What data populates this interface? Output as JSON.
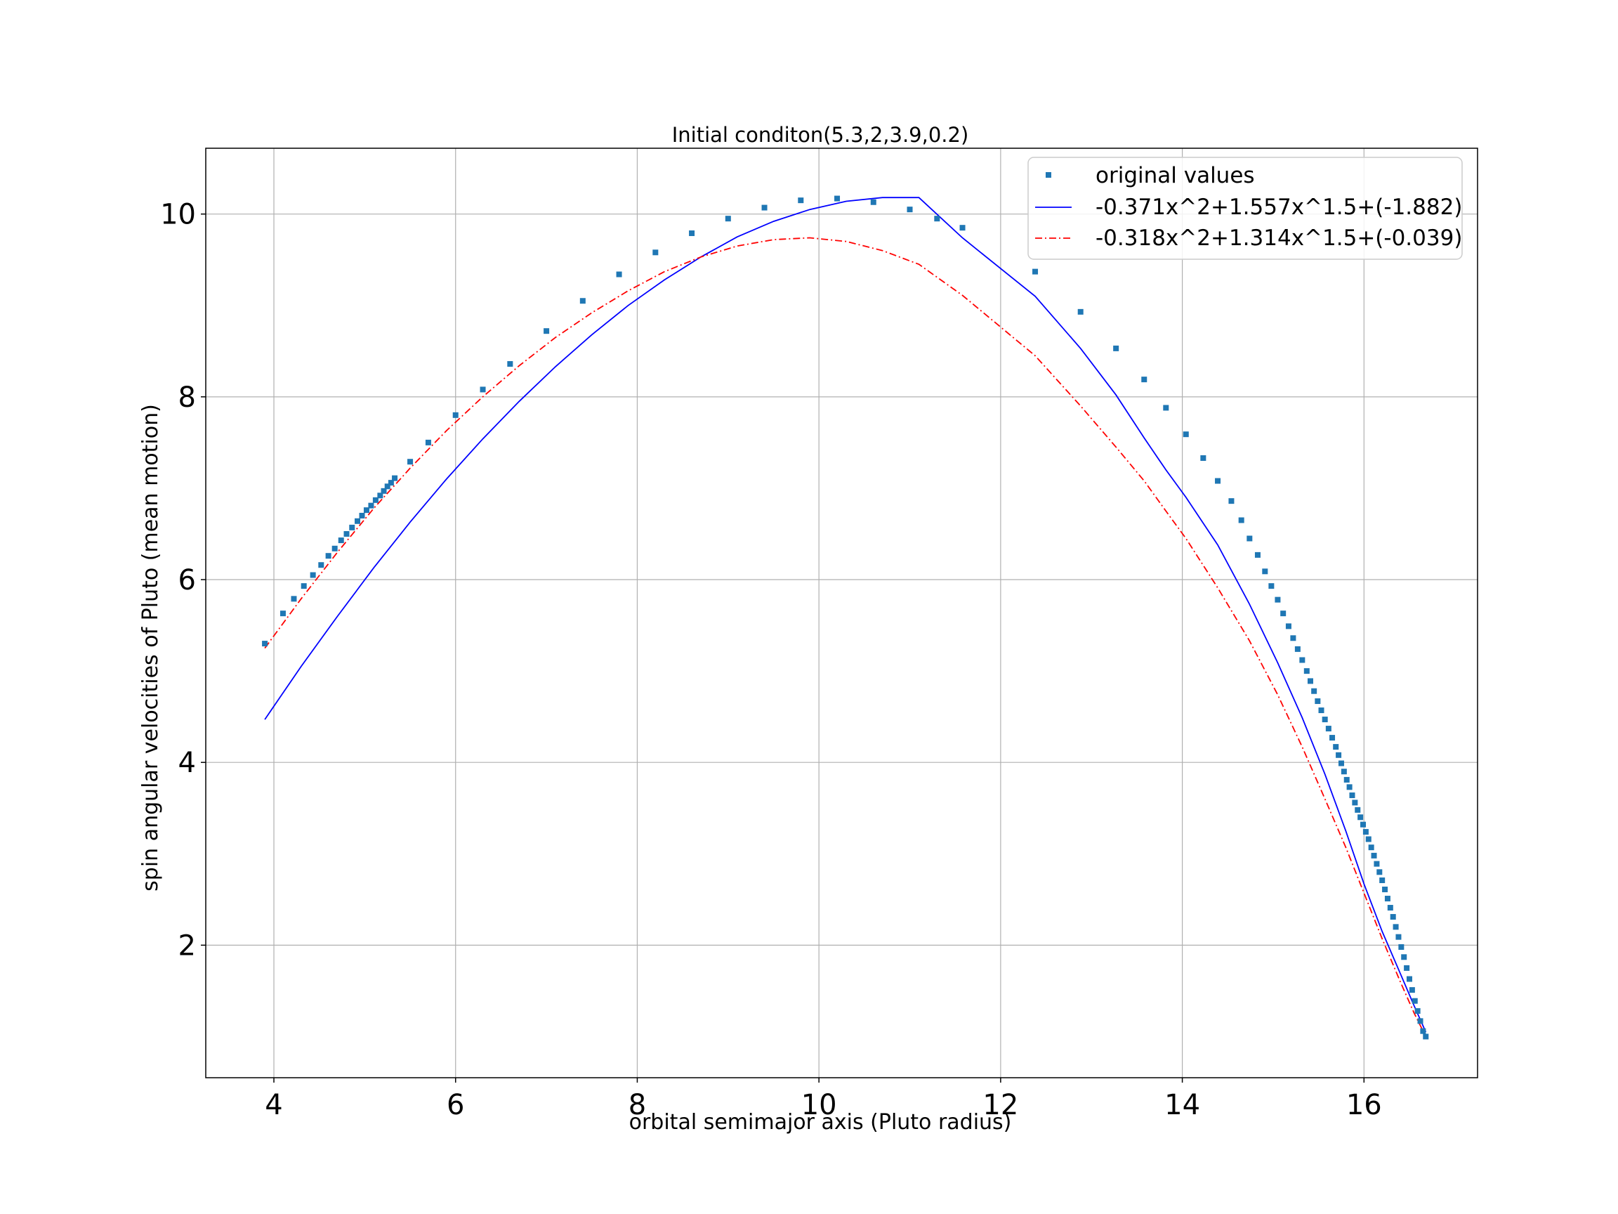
{
  "chart_data": {
    "type": "scatter",
    "title": "Initial conditon(5.3,2,3.9,0.2)",
    "xlabel": "orbital semimajor axis (Pluto radius)",
    "ylabel": "spin angular velocities of Pluto (mean motion)",
    "xlim": [
      3.25,
      17.25
    ],
    "ylim": [
      0.55,
      10.72
    ],
    "xticks": [
      4,
      6,
      8,
      10,
      12,
      14,
      16
    ],
    "yticks": [
      2,
      4,
      6,
      8,
      10
    ],
    "grid": true,
    "legend_position": "upper right",
    "series": [
      {
        "name": "original values",
        "kind": "scatter",
        "marker": "square",
        "color": "#1f77b4",
        "points": [
          [
            3.9,
            5.3
          ],
          [
            4.1,
            5.63
          ],
          [
            4.22,
            5.79
          ],
          [
            4.33,
            5.93
          ],
          [
            4.43,
            6.05
          ],
          [
            4.52,
            6.16
          ],
          [
            4.6,
            6.26
          ],
          [
            4.67,
            6.34
          ],
          [
            4.74,
            6.43
          ],
          [
            4.8,
            6.5
          ],
          [
            4.86,
            6.57
          ],
          [
            4.92,
            6.64
          ],
          [
            4.97,
            6.7
          ],
          [
            5.02,
            6.76
          ],
          [
            5.07,
            6.81
          ],
          [
            5.12,
            6.87
          ],
          [
            5.17,
            6.92
          ],
          [
            5.21,
            6.97
          ],
          [
            5.25,
            7.02
          ],
          [
            5.29,
            7.06
          ],
          [
            5.33,
            7.11
          ],
          [
            5.5,
            7.29
          ],
          [
            5.7,
            7.5
          ],
          [
            6.0,
            7.8
          ],
          [
            6.3,
            8.08
          ],
          [
            6.6,
            8.36
          ],
          [
            7.0,
            8.72
          ],
          [
            7.4,
            9.05
          ],
          [
            7.8,
            9.34
          ],
          [
            8.2,
            9.58
          ],
          [
            8.6,
            9.79
          ],
          [
            9.0,
            9.95
          ],
          [
            9.4,
            10.07
          ],
          [
            9.8,
            10.15
          ],
          [
            10.2,
            10.17
          ],
          [
            10.6,
            10.13
          ],
          [
            11.0,
            10.05
          ],
          [
            11.3,
            9.95
          ],
          [
            11.58,
            9.85
          ],
          [
            12.38,
            9.37
          ],
          [
            12.88,
            8.93
          ],
          [
            13.27,
            8.53
          ],
          [
            13.58,
            8.19
          ],
          [
            13.82,
            7.88
          ],
          [
            14.04,
            7.59
          ],
          [
            14.23,
            7.33
          ],
          [
            14.39,
            7.08
          ],
          [
            14.54,
            6.86
          ],
          [
            14.65,
            6.65
          ],
          [
            14.74,
            6.45
          ],
          [
            14.83,
            6.27
          ],
          [
            14.91,
            6.09
          ],
          [
            14.98,
            5.93
          ],
          [
            15.05,
            5.78
          ],
          [
            15.11,
            5.63
          ],
          [
            15.17,
            5.49
          ],
          [
            15.22,
            5.36
          ],
          [
            15.27,
            5.24
          ],
          [
            15.32,
            5.12
          ],
          [
            15.37,
            5.0
          ],
          [
            15.41,
            4.89
          ],
          [
            15.45,
            4.78
          ],
          [
            15.49,
            4.67
          ],
          [
            15.53,
            4.57
          ],
          [
            15.57,
            4.47
          ],
          [
            15.61,
            4.37
          ],
          [
            15.65,
            4.27
          ],
          [
            15.69,
            4.17
          ],
          [
            15.72,
            4.08
          ],
          [
            15.75,
            3.99
          ],
          [
            15.78,
            3.9
          ],
          [
            15.81,
            3.81
          ],
          [
            15.84,
            3.73
          ],
          [
            15.87,
            3.64
          ],
          [
            15.9,
            3.56
          ],
          [
            15.93,
            3.48
          ],
          [
            15.96,
            3.4
          ],
          [
            15.99,
            3.32
          ],
          [
            16.02,
            3.24
          ],
          [
            16.05,
            3.16
          ],
          [
            16.08,
            3.07
          ],
          [
            16.11,
            2.98
          ],
          [
            16.14,
            2.89
          ],
          [
            16.17,
            2.8
          ],
          [
            16.2,
            2.71
          ],
          [
            16.23,
            2.61
          ],
          [
            16.26,
            2.51
          ],
          [
            16.29,
            2.41
          ],
          [
            16.32,
            2.31
          ],
          [
            16.35,
            2.2
          ],
          [
            16.38,
            2.09
          ],
          [
            16.41,
            1.98
          ],
          [
            16.44,
            1.87
          ],
          [
            16.47,
            1.75
          ],
          [
            16.5,
            1.63
          ],
          [
            16.53,
            1.51
          ],
          [
            16.56,
            1.39
          ],
          [
            16.59,
            1.28
          ],
          [
            16.62,
            1.17
          ],
          [
            16.65,
            1.06
          ],
          [
            16.68,
            1.0
          ]
        ]
      },
      {
        "name": "-0.371x^2+1.557x^1.5+(-1.882)",
        "kind": "line",
        "style": "solid",
        "color": "#0000ff",
        "coefficients": {
          "a2": -0.371,
          "a15": 1.557,
          "c": -1.882
        },
        "x": [
          3.9,
          4.3,
          4.7,
          5.1,
          5.5,
          5.9,
          6.3,
          6.7,
          7.1,
          7.5,
          7.9,
          8.3,
          8.7,
          9.1,
          9.5,
          9.9,
          10.3,
          10.7,
          11.1,
          11.58,
          12.38,
          12.88,
          13.27,
          13.58,
          13.82,
          14.04,
          14.39,
          14.74,
          15.05,
          15.32,
          15.57,
          15.8,
          16.0,
          16.2,
          16.4,
          16.55,
          16.68
        ],
        "y": [
          4.47,
          5.05,
          5.6,
          6.13,
          6.63,
          7.1,
          7.54,
          7.95,
          8.33,
          8.68,
          9.0,
          9.28,
          9.53,
          9.75,
          9.92,
          10.05,
          10.14,
          10.18,
          10.18,
          9.74,
          9.1,
          8.53,
          8.02,
          7.55,
          7.2,
          6.9,
          6.38,
          5.73,
          5.09,
          4.49,
          3.87,
          3.25,
          2.67,
          2.15,
          1.69,
          1.34,
          1.05
        ]
      },
      {
        "name": "-0.318x^2+1.314x^1.5+(-0.039)",
        "kind": "line",
        "style": "dashdot",
        "color": "#ff0000",
        "coefficients": {
          "a2": -0.318,
          "a15": 1.314,
          "c": -0.039
        },
        "x": [
          3.9,
          4.3,
          4.7,
          5.1,
          5.5,
          5.9,
          6.3,
          6.7,
          7.1,
          7.5,
          7.9,
          8.3,
          8.7,
          9.1,
          9.5,
          9.9,
          10.3,
          10.7,
          11.1,
          11.58,
          12.38,
          12.88,
          13.27,
          13.58,
          13.82,
          14.04,
          14.39,
          14.74,
          15.05,
          15.32,
          15.57,
          15.8,
          16.0,
          16.2,
          16.4,
          16.55,
          16.68
        ],
        "y": [
          5.25,
          5.79,
          6.3,
          6.78,
          7.22,
          7.63,
          8.0,
          8.34,
          8.65,
          8.92,
          9.16,
          9.37,
          9.53,
          9.65,
          9.72,
          9.74,
          9.7,
          9.6,
          9.45,
          9.11,
          8.45,
          7.9,
          7.45,
          7.08,
          6.75,
          6.45,
          5.91,
          5.33,
          4.74,
          4.17,
          3.6,
          3.07,
          2.57,
          2.07,
          1.6,
          1.26,
          1.0
        ]
      }
    ]
  }
}
